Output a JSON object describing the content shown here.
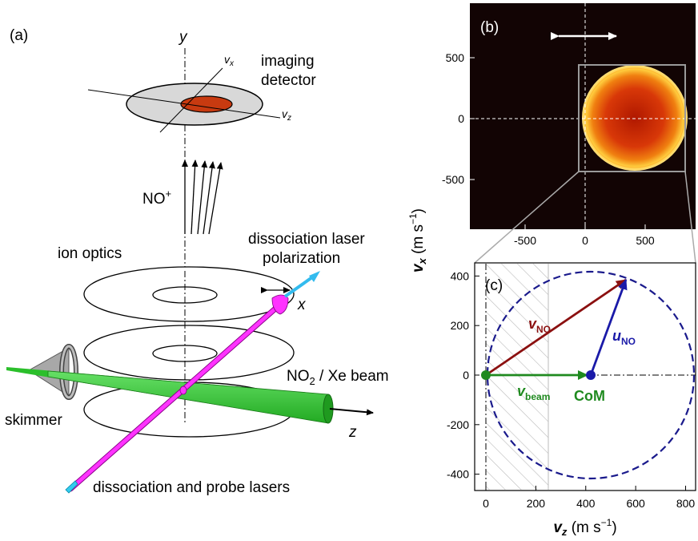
{
  "panel_a": {
    "panel_label": "(a)",
    "axis_y": "y",
    "axis_vx": "v",
    "axis_vx_sub": "x",
    "axis_vz": "v",
    "axis_vz_sub": "z",
    "detector_line1": "imaging",
    "detector_line2": "detector",
    "ion_label": "NO",
    "ion_sup": "+",
    "ion_optics": "ion optics",
    "pol_line1": "dissociation laser",
    "pol_line2": "polarization",
    "axis_x": "x",
    "beam_pre": "NO",
    "beam_sub": "2",
    "beam_post": " / Xe beam",
    "axis_z": "z",
    "skimmer": "skimmer",
    "lasers": "dissociation and probe lasers"
  },
  "panel_b": {
    "panel_label": "(b)",
    "y_ticks": [
      "500",
      "0",
      "-500"
    ],
    "x_ticks": [
      "-500",
      "0",
      "500"
    ]
  },
  "panel_c": {
    "panel_label": "(c)",
    "y_ticks": [
      "400",
      "200",
      "0",
      "-200",
      "-400"
    ],
    "x_ticks": [
      "0",
      "200",
      "400",
      "600",
      "800"
    ],
    "v_no": "v",
    "v_no_sub": "NO",
    "u_no": "u",
    "u_no_sub": "NO",
    "v_beam": "v",
    "v_beam_sub": "beam",
    "com": "CoM"
  },
  "shared_axes": {
    "y_var": "v",
    "y_sub": "x",
    "y_unit_pre": "(m s",
    "y_unit_sup": "−1",
    "y_unit_post": ")",
    "x_var": "v",
    "x_sub": "z",
    "x_unit_pre": "(m s",
    "x_unit_sup": "−1",
    "x_unit_post": ")"
  },
  "colors": {
    "v_no": "#8b1010",
    "u_no": "#1a1aa8",
    "v_beam": "#1f8a1f",
    "circle": "#1a1a8c",
    "beam": "#33cc33",
    "laser": "#ff33ff",
    "detector_spot": "#c83a10"
  },
  "chart_data": [
    {
      "type": "heatmap",
      "panel": "(b)",
      "x_ticks": [
        -500,
        0,
        500
      ],
      "y_ticks": [
        500,
        0,
        -500
      ],
      "description_values": {
        "ring_center_vz": 420,
        "ring_center_vx": 0,
        "ring_radius": 420
      }
    },
    {
      "type": "scatter",
      "panel": "(c)",
      "xlim": [
        -20,
        830
      ],
      "ylim": [
        -420,
        420
      ],
      "x_ticks": [
        0,
        200,
        400,
        600,
        800
      ],
      "y_ticks": [
        -400,
        -200,
        0,
        200,
        400
      ],
      "vectors": [
        {
          "name": "v_NO",
          "from": [
            0,
            0
          ],
          "to": [
            560,
            385
          ]
        },
        {
          "name": "u_NO",
          "from": [
            420,
            0
          ],
          "to": [
            560,
            385
          ]
        },
        {
          "name": "v_beam",
          "from": [
            0,
            0
          ],
          "to": [
            420,
            0
          ]
        }
      ],
      "circle": {
        "center": [
          420,
          0
        ],
        "radius": 420
      },
      "hatched_region": [
        0,
        250
      ]
    }
  ]
}
